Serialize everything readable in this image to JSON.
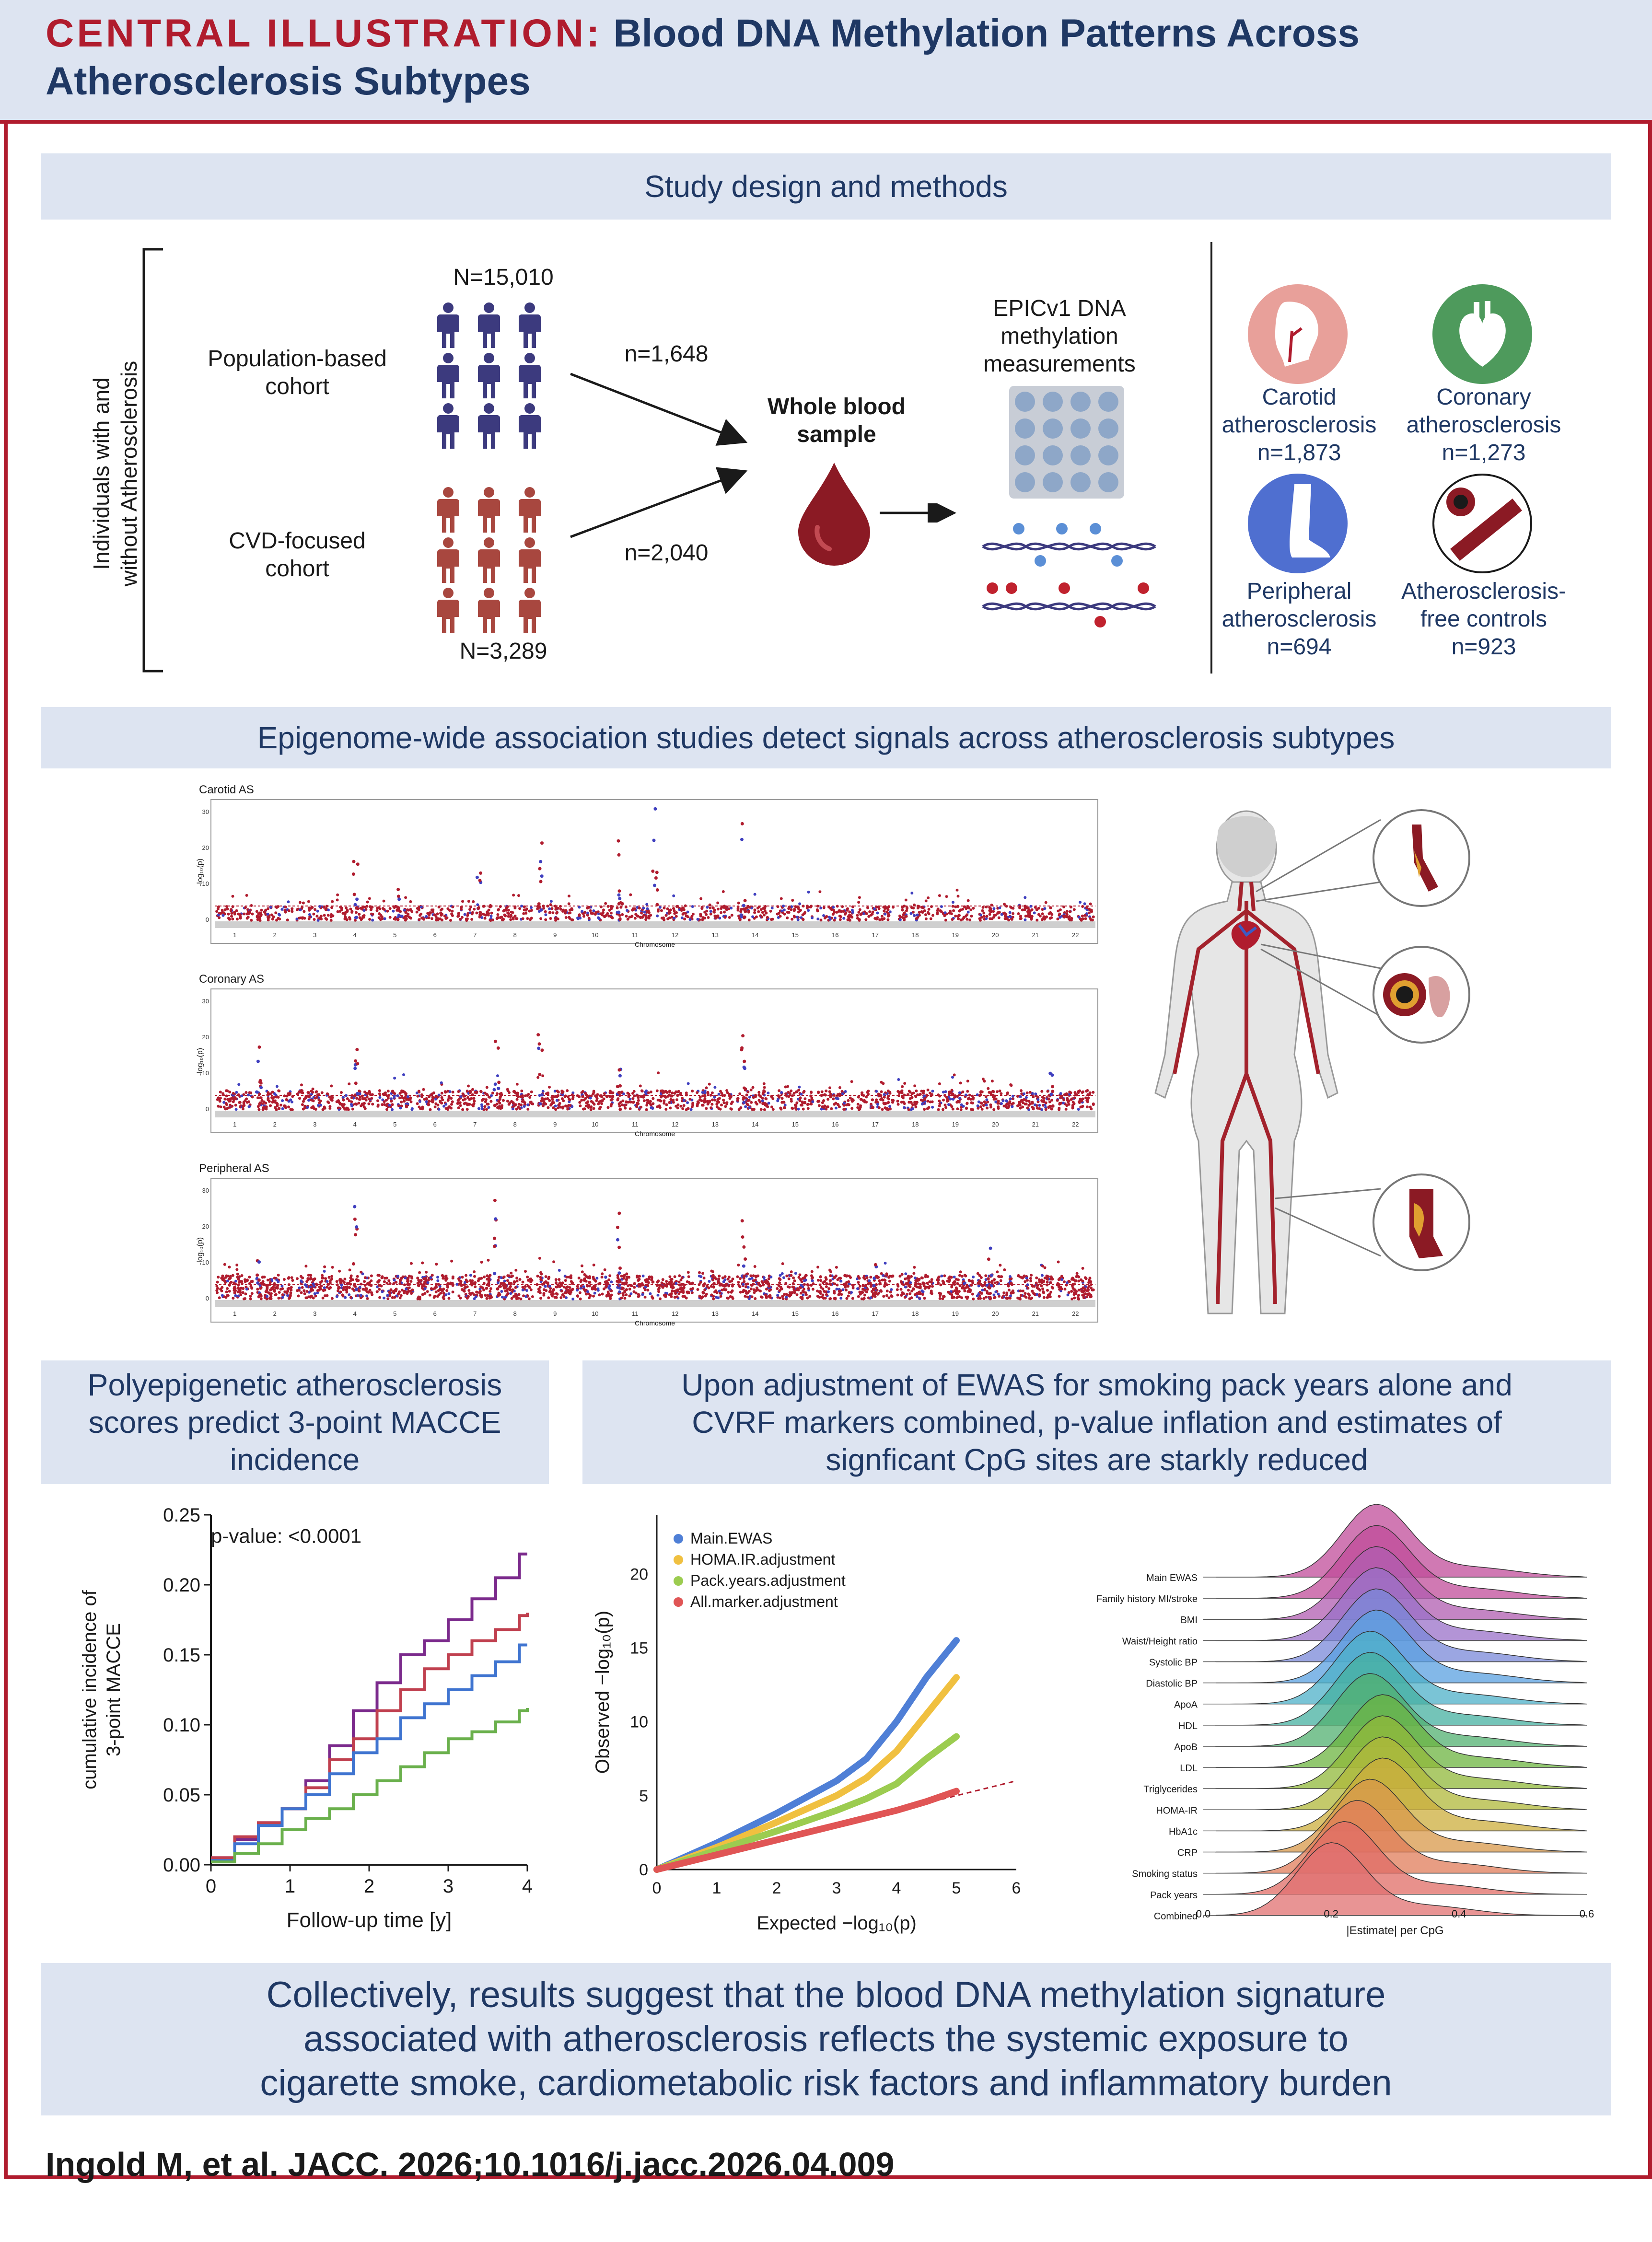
{
  "header": {
    "lead": "CENTRAL ILLUSTRATION:",
    "title_line1": "Blood DNA Methylation Patterns Across",
    "title_line2": "Atherosclerosis Subtypes"
  },
  "study_design": {
    "band_title": "Study design and methods",
    "side_label_1": "Individuals with and",
    "side_label_2": "without Atherosclerosis",
    "pop_n": "N=15,010",
    "pop_label_1": "Population-based",
    "pop_label_2": "cohort",
    "cvd_label_1": "CVD-focused",
    "cvd_label_2": "cohort",
    "cvd_n": "N=3,289",
    "arrow_top": "n=1,648",
    "arrow_bottom": "n=2,040",
    "blood_label_1": "Whole blood",
    "blood_label_2": "sample",
    "epic_1": "EPICv1 DNA",
    "epic_2": "methylation",
    "epic_3": "measurements",
    "groups": [
      {
        "name1": "Carotid",
        "name2": "atherosclerosis",
        "n": "n=1,873",
        "color": "#e8a09a"
      },
      {
        "name1": "Coronary",
        "name2": "atherosclerosis",
        "n": "n=1,273",
        "color": "#4e9a5c"
      },
      {
        "name1": "Peripheral",
        "name2": "atherosclerosis",
        "n": "n=694",
        "color": "#4f6fd0"
      },
      {
        "name1": "Atherosclerosis-",
        "name2": "free controls",
        "n": "n=923",
        "color": "#ffffff"
      }
    ]
  },
  "ewas": {
    "band_title": "Epigenome-wide association studies detect signals across atherosclerosis subtypes",
    "panels": [
      {
        "title": "Carotid AS",
        "ylabel": "-log₁₀(p)",
        "xlabel": "Chromosome"
      },
      {
        "title": "Coronary AS",
        "ylabel": "-log₁₀(p)",
        "xlabel": "Chromosome"
      },
      {
        "title": "Peripheral AS",
        "ylabel": "-log₁₀(p)",
        "xlabel": "Chromosome"
      }
    ],
    "chromosomes": [
      "1",
      "2",
      "3",
      "4",
      "5",
      "6",
      "7",
      "8",
      "9",
      "10",
      "11",
      "12",
      "13",
      "14",
      "15",
      "16",
      "17",
      "18",
      "19",
      "20",
      "21",
      "22"
    ],
    "y_ticks": [
      "30",
      "20",
      "10",
      "0"
    ]
  },
  "scores": {
    "band_title_1": "Polyepigenetic atherosclerosis",
    "band_title_2": "scores predict 3-point MACCE",
    "band_title_3": "incidence"
  },
  "adjust": {
    "band_title_1": "Upon adjustment of EWAS for smoking pack years alone and",
    "band_title_2": "CVRF markers combined, p-value inflation and estimates of",
    "band_title_3": "signficant CpG sites are starkly reduced"
  },
  "conclusion": {
    "line1": "Collectively, results suggest that the blood DNA methylation signature",
    "line2": "associated with atherosclerosis reflects the systemic exposure to",
    "line3": "cigarette smoke, cardiometabolic risk factors and inflammatory burden"
  },
  "footer": "Ingold M, et al. JACC. 2026;10.1016/j.jacc.2026.04.009",
  "chart_data": [
    {
      "type": "line",
      "annotation": "p-value: <0.0001",
      "xlabel": "Follow-up time [y]",
      "ylabel": "cumulative incidence of 3-point MACCE",
      "xlim": [
        0,
        4
      ],
      "ylim": [
        0,
        0.25
      ],
      "x_ticks": [
        0,
        1,
        2,
        3,
        4
      ],
      "y_ticks": [
        0.0,
        0.05,
        0.1,
        0.15,
        0.2,
        0.25
      ],
      "series": [
        {
          "color": "#7b2a8c",
          "x": [
            0,
            0.3,
            0.6,
            0.9,
            1.2,
            1.5,
            1.8,
            2.1,
            2.4,
            2.7,
            3.0,
            3.3,
            3.6,
            3.9,
            4.0
          ],
          "y": [
            0.005,
            0.018,
            0.03,
            0.04,
            0.06,
            0.085,
            0.11,
            0.13,
            0.15,
            0.16,
            0.175,
            0.19,
            0.205,
            0.222,
            0.222
          ]
        },
        {
          "color": "#c0404f",
          "x": [
            0,
            0.3,
            0.6,
            0.9,
            1.2,
            1.5,
            1.8,
            2.1,
            2.4,
            2.7,
            3.0,
            3.3,
            3.6,
            3.9,
            4.0
          ],
          "y": [
            0.005,
            0.02,
            0.03,
            0.04,
            0.055,
            0.075,
            0.09,
            0.11,
            0.125,
            0.14,
            0.15,
            0.16,
            0.168,
            0.178,
            0.18
          ]
        },
        {
          "color": "#3f74d0",
          "x": [
            0,
            0.3,
            0.6,
            0.9,
            1.2,
            1.5,
            1.8,
            2.1,
            2.4,
            2.7,
            3.0,
            3.3,
            3.6,
            3.9,
            4.0
          ],
          "y": [
            0.003,
            0.015,
            0.028,
            0.04,
            0.05,
            0.065,
            0.08,
            0.09,
            0.105,
            0.115,
            0.125,
            0.135,
            0.145,
            0.157,
            0.157
          ]
        },
        {
          "color": "#6ab04c",
          "x": [
            0,
            0.3,
            0.6,
            0.9,
            1.2,
            1.5,
            1.8,
            2.1,
            2.4,
            2.7,
            3.0,
            3.3,
            3.6,
            3.9,
            4.0
          ],
          "y": [
            0.002,
            0.008,
            0.015,
            0.025,
            0.033,
            0.04,
            0.05,
            0.06,
            0.07,
            0.08,
            0.09,
            0.095,
            0.102,
            0.11,
            0.112
          ]
        }
      ]
    },
    {
      "type": "scatter",
      "xlabel": "Expected  −log₁₀(p)",
      "ylabel": "Observed  −log₁₀(p)",
      "xlim": [
        0,
        6
      ],
      "ylim": [
        0,
        24
      ],
      "x_ticks": [
        0,
        1,
        2,
        3,
        4,
        5,
        6
      ],
      "y_ticks": [
        0,
        5,
        10,
        15,
        20
      ],
      "series": [
        {
          "name": "Main.EWAS",
          "color": "#4f7fd6",
          "x": [
            0,
            1,
            2,
            3,
            3.5,
            4,
            4.5,
            5
          ],
          "y": [
            0,
            1.8,
            3.8,
            6,
            7.5,
            10,
            13,
            15.5
          ]
        },
        {
          "name": "HOMA.IR.adjustment",
          "color": "#f0c040",
          "x": [
            0,
            1,
            2,
            3,
            3.5,
            4,
            4.5,
            5
          ],
          "y": [
            0,
            1.5,
            3.2,
            5,
            6.2,
            8,
            10.5,
            13
          ]
        },
        {
          "name": "Pack.years.adjustment",
          "color": "#9ccc50",
          "x": [
            0,
            1,
            2,
            3,
            3.5,
            4,
            4.5,
            5
          ],
          "y": [
            0,
            1.3,
            2.6,
            4,
            4.8,
            5.8,
            7.5,
            9
          ]
        },
        {
          "name": "All.marker.adjustment",
          "color": "#e05555",
          "x": [
            0,
            1,
            2,
            3,
            3.5,
            4,
            4.5,
            5
          ],
          "y": [
            0,
            1,
            2,
            3,
            3.5,
            4,
            4.6,
            5.3
          ]
        }
      ]
    },
    {
      "type": "area",
      "xlabel": "|Estimate| per CpG",
      "x_ticks": [
        0.0,
        0.2,
        0.4,
        0.6
      ],
      "categories": [
        "Main EWAS",
        "Family history MI/stroke",
        "BMI",
        "Waist/Height ratio",
        "Systolic BP",
        "Diastolic BP",
        "ApoA",
        "HDL",
        "ApoB",
        "LDL",
        "Triglycerides",
        "HOMA-IR",
        "HbA1c",
        "CRP",
        "Smoking status",
        "Pack years",
        "Combined"
      ],
      "peaks": [
        0.27,
        0.27,
        0.27,
        0.27,
        0.27,
        0.27,
        0.26,
        0.26,
        0.26,
        0.28,
        0.28,
        0.28,
        0.28,
        0.26,
        0.24,
        0.22,
        0.2
      ],
      "colors": [
        "#c04c9a",
        "#c04c9a",
        "#b05cb0",
        "#9a70c8",
        "#7a88d8",
        "#5aa0e0",
        "#4eb0c8",
        "#46b0a0",
        "#52b070",
        "#6cb440",
        "#90b83a",
        "#b0b83a",
        "#ccae3c",
        "#d8984a",
        "#e07c5a",
        "#e06c66",
        "#e07070"
      ]
    }
  ]
}
